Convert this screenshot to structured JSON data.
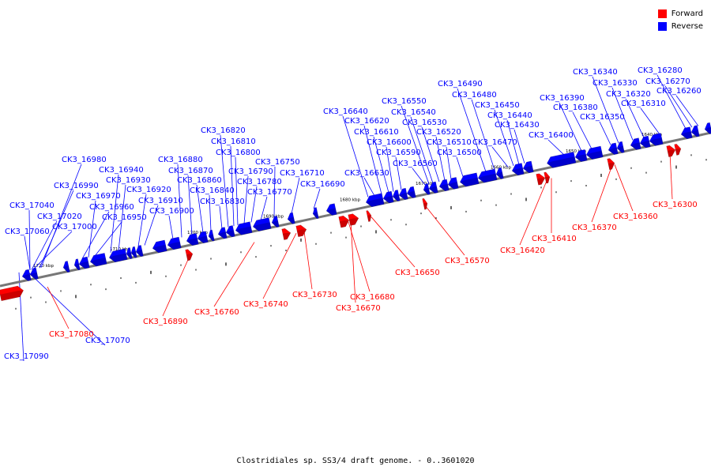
{
  "legend": {
    "forward_label": "Forward",
    "reverse_label": "Reverse",
    "forward_color": "#ff0000",
    "reverse_color": "#0000ff"
  },
  "caption": "Clostridiales sp. SS3/4 draft genome. - 0..3601020",
  "scale_labels": [
    "1720 kbp",
    "1710 kbp",
    "1700 kbp",
    "1690 kbp",
    "1680 kbp",
    "1670 kbp",
    "1660 kbp",
    "1650 kbp",
    "1640 kbp"
  ],
  "reverse_genes": [
    "CK3_17090",
    "CK3_17070",
    "CK3_17060",
    "CK3_17040",
    "CK3_17020",
    "CK3_17000",
    "CK3_16990",
    "CK3_16980",
    "CK3_16970",
    "CK3_16960",
    "CK3_16950",
    "CK3_16940",
    "CK3_16930",
    "CK3_16920",
    "CK3_16910",
    "CK3_16900",
    "CK3_16880",
    "CK3_16870",
    "CK3_16860",
    "CK3_16840",
    "CK3_16830",
    "CK3_16820",
    "CK3_16810",
    "CK3_16800",
    "CK3_16790",
    "CK3_16780",
    "CK3_16770",
    "CK3_16750",
    "CK3_16710",
    "CK3_16690",
    "CK3_16640",
    "CK3_16630",
    "CK3_16620",
    "CK3_16610",
    "CK3_16600",
    "CK3_16590",
    "CK3_16560",
    "CK3_16550",
    "CK3_16540",
    "CK3_16530",
    "CK3_16520",
    "CK3_16510",
    "CK3_16500",
    "CK3_16490",
    "CK3_16480",
    "CK3_16470",
    "CK3_16450",
    "CK3_16440",
    "CK3_16430",
    "CK3_16400",
    "CK3_16390",
    "CK3_16380",
    "CK3_16350",
    "CK3_16340",
    "CK3_16330",
    "CK3_16320",
    "CK3_16310",
    "CK3_16280",
    "CK3_16270",
    "CK3_16260"
  ],
  "forward_genes": [
    "CK3_17080",
    "CK3_16890",
    "CK3_16760",
    "CK3_16740",
    "CK3_16730",
    "CK3_16680",
    "CK3_16670",
    "CK3_16650",
    "CK3_16570",
    "CK3_16420",
    "CK3_16410",
    "CK3_16370",
    "CK3_16360",
    "CK3_16300"
  ]
}
